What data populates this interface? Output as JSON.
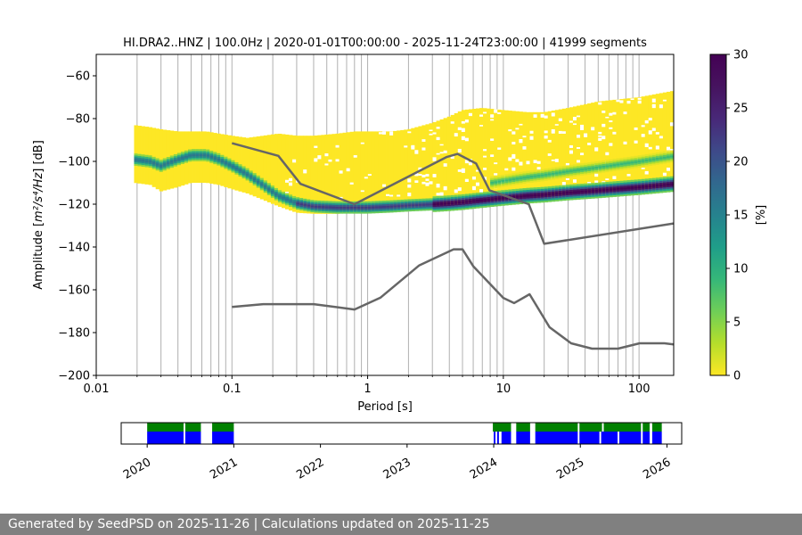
{
  "chart_data": [
    {
      "type": "heatmap",
      "title": "HI.DRA2..HNZ | 100.0Hz | 2020-01-01T00:00:00 - 2025-11-24T23:00:00 | 41999 segments",
      "xlabel": "Period [s]",
      "ylabel_prefix": "Amplitude [",
      "ylabel_math": "m²/s⁴/Hz",
      "ylabel_suffix": "] [dB]",
      "x_scale": "log",
      "xlim": [
        0.01,
        180
      ],
      "ylim": [
        -200,
        -50
      ],
      "x_ticks": [
        0.01,
        0.1,
        1,
        10,
        100
      ],
      "x_tick_labels": [
        "0.01",
        "0.1",
        "1",
        "10",
        "100"
      ],
      "y_ticks": [
        -200,
        -180,
        -160,
        -140,
        -120,
        -100,
        -80,
        -60
      ],
      "y_tick_labels": [
        "−200",
        "−180",
        "−160",
        "−140",
        "−120",
        "−100",
        "−80",
        "−60"
      ],
      "grid": "vertical log grid at every decade and minor tick",
      "colormap": "viridis_r",
      "colorbar": {
        "label": "[%]",
        "range": [
          0,
          30
        ],
        "ticks": [
          0,
          5,
          10,
          15,
          20,
          25,
          30
        ],
        "tick_labels": [
          "0",
          "5",
          "10",
          "15",
          "20",
          "25",
          "30"
        ]
      },
      "ppsd_mode": {
        "name": "mode",
        "period": [
          0.019,
          0.025,
          0.03,
          0.04,
          0.05,
          0.065,
          0.08,
          0.1,
          0.13,
          0.17,
          0.22,
          0.3,
          0.4,
          0.6,
          0.8,
          1,
          1.5,
          2,
          3,
          4,
          5,
          7,
          10,
          15,
          20,
          30,
          50,
          100,
          180
        ],
        "db": [
          -99,
          -100,
          -102,
          -99,
          -97,
          -97,
          -99,
          -102,
          -106,
          -111,
          -116,
          -119.5,
          -121,
          -121.5,
          -121.5,
          -121.5,
          -121,
          -120.5,
          -120,
          -119.5,
          -119,
          -118,
          -117,
          -116,
          -115.5,
          -114.5,
          -113.5,
          -112,
          -110.5
        ]
      },
      "ppsd_spread": {
        "period": [
          0.019,
          0.025,
          0.03,
          0.04,
          0.05,
          0.065,
          0.08,
          0.1,
          0.13,
          0.17,
          0.22,
          0.3,
          0.4,
          0.6,
          0.8,
          1,
          1.5,
          2,
          3,
          4,
          5,
          7,
          10,
          15,
          20,
          30,
          50,
          100,
          180
        ],
        "upper_db": [
          -83,
          -84,
          -85,
          -86,
          -86,
          -86,
          -87,
          -88,
          -89,
          -88,
          -87,
          -88,
          -88,
          -87,
          -86,
          -86,
          -86,
          -85,
          -82,
          -79,
          -76,
          -75,
          -76,
          -77,
          -77,
          -75,
          -72,
          -70,
          -67
        ],
        "lower_db": [
          -110,
          -111,
          -114,
          -112,
          -110,
          -110,
          -111,
          -113,
          -115,
          -118,
          -121,
          -124,
          -124.5,
          -124.5,
          -124,
          -123.5,
          -123,
          -122,
          -121,
          -120.5,
          -120,
          -119.5,
          -119,
          -118,
          -117.5,
          -117,
          -116,
          -115,
          -114
        ]
      },
      "series": [
        {
          "name": "NHNM",
          "period": [
            0.1,
            0.22,
            0.32,
            0.8,
            3.8,
            4.6,
            6.3,
            7.9,
            15.4,
            20,
            180
          ],
          "db": [
            -91.5,
            -97.4,
            -110.5,
            -120,
            -98,
            -96.5,
            -101,
            -113.5,
            -120,
            -138.5,
            -129
          ]
        },
        {
          "name": "NLNM",
          "period": [
            0.1,
            0.17,
            0.4,
            0.8,
            1.24,
            2.4,
            4.3,
            5,
            6,
            10,
            12,
            15.6,
            21.9,
            31.6,
            45,
            70,
            101,
            154,
            180
          ],
          "db": [
            -168,
            -166.7,
            -166.7,
            -169.2,
            -163.7,
            -148.6,
            -141.1,
            -141.1,
            -149,
            -163.8,
            -166.2,
            -162.1,
            -177.5,
            -185,
            -187.5,
            -187.5,
            -185,
            -185,
            -185.5
          ]
        }
      ]
    },
    {
      "type": "timeline",
      "x_tick_labels": [
        "2020",
        "2021",
        "2022",
        "2023",
        "2024",
        "2025",
        "2026"
      ],
      "x_ticks": [
        2020,
        2021,
        2022,
        2023,
        2024,
        2025,
        2026
      ],
      "xlim": [
        2019.7,
        2026.17
      ],
      "data_availability": [
        {
          "start": 2020.0,
          "end": 2020.42
        },
        {
          "start": 2020.44,
          "end": 2020.62
        },
        {
          "start": 2020.75,
          "end": 2021.0
        },
        {
          "start": 2023.99,
          "end": 2024.2
        },
        {
          "start": 2024.26,
          "end": 2024.42
        },
        {
          "start": 2024.48,
          "end": 2024.97
        },
        {
          "start": 2024.99,
          "end": 2025.25
        },
        {
          "start": 2025.27,
          "end": 2025.7
        },
        {
          "start": 2025.72,
          "end": 2025.8
        },
        {
          "start": 2025.83,
          "end": 2025.94
        }
      ],
      "processed": [
        {
          "start": 2020.0,
          "end": 2020.42
        },
        {
          "start": 2020.44,
          "end": 2020.62
        },
        {
          "start": 2020.75,
          "end": 2021.0
        },
        {
          "start": 2024.0,
          "end": 2024.02
        },
        {
          "start": 2024.04,
          "end": 2024.06
        },
        {
          "start": 2024.09,
          "end": 2024.2
        },
        {
          "start": 2024.26,
          "end": 2024.42
        },
        {
          "start": 2024.48,
          "end": 2024.97
        },
        {
          "start": 2024.99,
          "end": 2025.22
        },
        {
          "start": 2025.24,
          "end": 2025.43
        },
        {
          "start": 2025.45,
          "end": 2025.7
        },
        {
          "start": 2025.72,
          "end": 2025.8
        },
        {
          "start": 2025.83,
          "end": 2025.94
        }
      ],
      "colors": {
        "data_availability": "#008000",
        "processed": "#0000ff"
      }
    }
  ],
  "footer": {
    "text": "Generated by SeedPSD on 2025-11-26 | Calculations updated on 2025-11-25"
  },
  "colors": {
    "model_lines": "#666666",
    "grid": "#b0b0b0",
    "footer_bg": "#808080"
  }
}
